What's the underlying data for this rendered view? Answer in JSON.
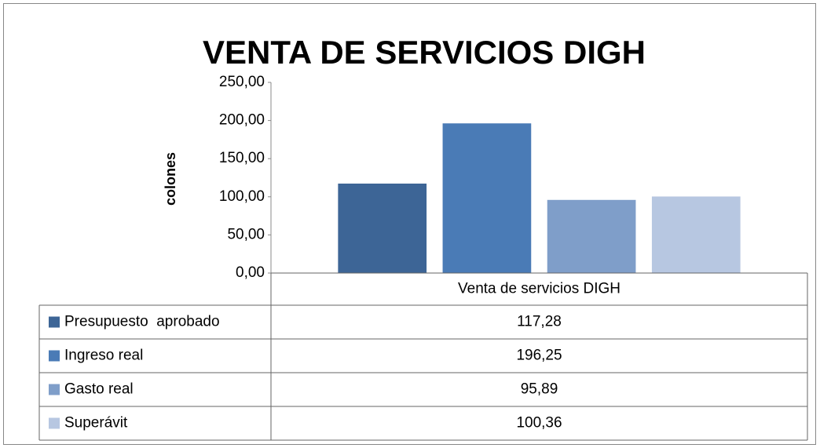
{
  "chart_data": {
    "type": "bar",
    "title": "VENTA DE SERVICIOS DIGH",
    "ylabel": "colones",
    "categories": [
      "Venta de servicios DIGH"
    ],
    "series": [
      {
        "name": "Presupuesto  aprobado",
        "color": "#3d6596",
        "values": [
          117.28
        ],
        "value_labels": [
          "117,28"
        ]
      },
      {
        "name": "Ingreso real",
        "color": "#4a7bb6",
        "values": [
          196.25
        ],
        "value_labels": [
          "196,25"
        ]
      },
      {
        "name": "Gasto real",
        "color": "#7f9ec9",
        "values": [
          95.89
        ],
        "value_labels": [
          "95,89"
        ]
      },
      {
        "name": "Superávit",
        "color": "#b7c7e1",
        "values": [
          100.36
        ],
        "value_labels": [
          "100,36"
        ]
      }
    ],
    "ylim": [
      0,
      250
    ],
    "yticks": [
      {
        "value": 0,
        "label": "0,00"
      },
      {
        "value": 50,
        "label": "50,00"
      },
      {
        "value": 100,
        "label": "100,00"
      },
      {
        "value": 150,
        "label": "150,00"
      },
      {
        "value": 200,
        "label": "200,00"
      },
      {
        "value": 250,
        "label": "250,00"
      }
    ],
    "data_table": true
  }
}
